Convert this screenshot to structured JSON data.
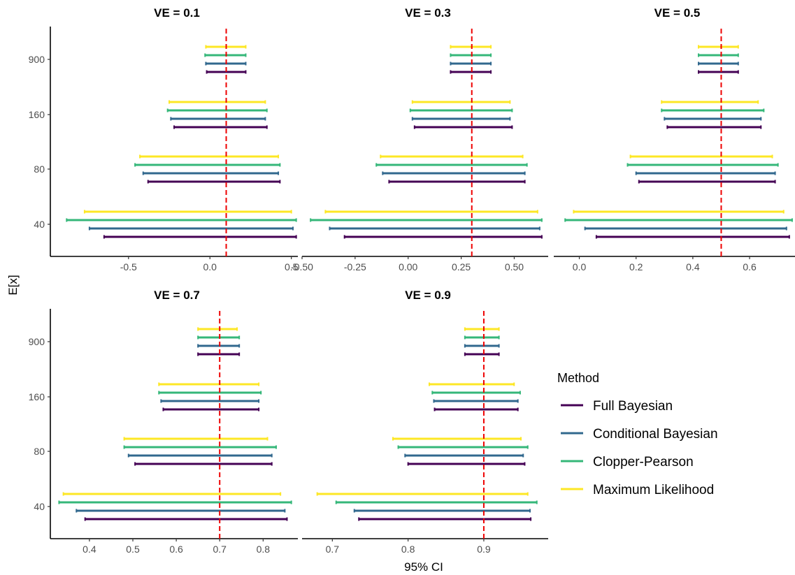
{
  "y_axis_label": "E[x]",
  "x_axis_label": "95% CI",
  "legend": {
    "title": "Method",
    "items": [
      {
        "label": "Full Bayesian",
        "color": "#440154"
      },
      {
        "label": "Conditional Bayesian",
        "color": "#31688e"
      },
      {
        "label": "Clopper-Pearson",
        "color": "#35b779"
      },
      {
        "label": "Maximum Likelihood",
        "color": "#fde725"
      }
    ]
  },
  "colors": {
    "reference_line": "#ee0000",
    "axis": "#000000",
    "tick_text": "#4d4d4d"
  },
  "chart_data": {
    "type": "errorbar-facets",
    "y_categories": [
      "40",
      "80",
      "160",
      "900"
    ],
    "series_order": [
      "Full Bayesian",
      "Conditional Bayesian",
      "Clopper-Pearson",
      "Maximum Likelihood"
    ],
    "panels": [
      {
        "title": "VE = 0.1",
        "ve": 0.1,
        "xlim": [
          -0.98,
          0.54
        ],
        "xticks": [
          {
            "v": -0.5,
            "l": "-0.5"
          },
          {
            "v": 0,
            "l": "0.0"
          },
          {
            "v": 0.5,
            "l": "0.5"
          }
        ],
        "intervals": {
          "900": [
            [
              -0.02,
              0.22
            ],
            [
              -0.025,
              0.22
            ],
            [
              -0.03,
              0.22
            ],
            [
              -0.025,
              0.22
            ]
          ],
          "160": [
            [
              -0.22,
              0.35
            ],
            [
              -0.24,
              0.34
            ],
            [
              -0.26,
              0.35
            ],
            [
              -0.25,
              0.34
            ]
          ],
          "80": [
            [
              -0.38,
              0.43
            ],
            [
              -0.41,
              0.42
            ],
            [
              -0.46,
              0.43
            ],
            [
              -0.43,
              0.42
            ]
          ],
          "40": [
            [
              -0.65,
              0.53
            ],
            [
              -0.74,
              0.51
            ],
            [
              -0.88,
              0.53
            ],
            [
              -0.77,
              0.5
            ]
          ]
        }
      },
      {
        "title": "VE = 0.3",
        "ve": 0.3,
        "xlim": [
          -0.5,
          0.66
        ],
        "xticks": [
          {
            "v": -0.5,
            "l": "-0.50"
          },
          {
            "v": -0.25,
            "l": "-0.25"
          },
          {
            "v": 0,
            "l": "0.00"
          },
          {
            "v": 0.25,
            "l": "0.25"
          },
          {
            "v": 0.5,
            "l": "0.50"
          }
        ],
        "intervals": {
          "900": [
            [
              0.2,
              0.39
            ],
            [
              0.2,
              0.39
            ],
            [
              0.2,
              0.39
            ],
            [
              0.2,
              0.39
            ]
          ],
          "160": [
            [
              0.03,
              0.49
            ],
            [
              0.02,
              0.48
            ],
            [
              0.01,
              0.49
            ],
            [
              0.02,
              0.48
            ]
          ],
          "80": [
            [
              -0.09,
              0.55
            ],
            [
              -0.12,
              0.55
            ],
            [
              -0.15,
              0.56
            ],
            [
              -0.13,
              0.54
            ]
          ],
          "40": [
            [
              -0.3,
              0.63
            ],
            [
              -0.37,
              0.62
            ],
            [
              -0.46,
              0.63
            ],
            [
              -0.39,
              0.61
            ]
          ]
        }
      },
      {
        "title": "VE = 0.5",
        "ve": 0.5,
        "xlim": [
          -0.09,
          0.76
        ],
        "xticks": [
          {
            "v": 0,
            "l": "0.0"
          },
          {
            "v": 0.2,
            "l": "0.2"
          },
          {
            "v": 0.4,
            "l": "0.4"
          },
          {
            "v": 0.6,
            "l": "0.6"
          }
        ],
        "intervals": {
          "900": [
            [
              0.42,
              0.56
            ],
            [
              0.42,
              0.56
            ],
            [
              0.42,
              0.56
            ],
            [
              0.42,
              0.56
            ]
          ],
          "160": [
            [
              0.31,
              0.64
            ],
            [
              0.3,
              0.64
            ],
            [
              0.29,
              0.65
            ],
            [
              0.29,
              0.63
            ]
          ],
          "80": [
            [
              0.21,
              0.69
            ],
            [
              0.2,
              0.69
            ],
            [
              0.17,
              0.7
            ],
            [
              0.18,
              0.68
            ]
          ],
          "40": [
            [
              0.06,
              0.74
            ],
            [
              0.02,
              0.73
            ],
            [
              -0.05,
              0.75
            ],
            [
              -0.02,
              0.72
            ]
          ]
        }
      },
      {
        "title": "VE = 0.7",
        "ve": 0.7,
        "xlim": [
          0.31,
          0.88
        ],
        "xticks": [
          {
            "v": 0.4,
            "l": "0.4"
          },
          {
            "v": 0.5,
            "l": "0.5"
          },
          {
            "v": 0.6,
            "l": "0.6"
          },
          {
            "v": 0.7,
            "l": "0.7"
          },
          {
            "v": 0.8,
            "l": "0.8"
          }
        ],
        "intervals": {
          "900": [
            [
              0.65,
              0.745
            ],
            [
              0.65,
              0.745
            ],
            [
              0.65,
              0.745
            ],
            [
              0.65,
              0.74
            ]
          ],
          "160": [
            [
              0.57,
              0.79
            ],
            [
              0.565,
              0.79
            ],
            [
              0.56,
              0.795
            ],
            [
              0.56,
              0.79
            ]
          ],
          "80": [
            [
              0.505,
              0.82
            ],
            [
              0.49,
              0.82
            ],
            [
              0.48,
              0.83
            ],
            [
              0.48,
              0.81
            ]
          ],
          "40": [
            [
              0.39,
              0.855
            ],
            [
              0.37,
              0.85
            ],
            [
              0.33,
              0.865
            ],
            [
              0.34,
              0.84
            ]
          ]
        }
      },
      {
        "title": "VE = 0.9",
        "ve": 0.9,
        "xlim": [
          0.66,
          0.985
        ],
        "xticks": [
          {
            "v": 0.7,
            "l": "0.7"
          },
          {
            "v": 0.8,
            "l": "0.8"
          },
          {
            "v": 0.9,
            "l": "0.9"
          }
        ],
        "intervals": {
          "900": [
            [
              0.875,
              0.92
            ],
            [
              0.875,
              0.92
            ],
            [
              0.875,
              0.92
            ],
            [
              0.875,
              0.92
            ]
          ],
          "160": [
            [
              0.835,
              0.945
            ],
            [
              0.834,
              0.945
            ],
            [
              0.832,
              0.948
            ],
            [
              0.828,
              0.94
            ]
          ],
          "80": [
            [
              0.8,
              0.954
            ],
            [
              0.796,
              0.952
            ],
            [
              0.787,
              0.958
            ],
            [
              0.78,
              0.949
            ]
          ],
          "40": [
            [
              0.735,
              0.962
            ],
            [
              0.729,
              0.961
            ],
            [
              0.705,
              0.97
            ],
            [
              0.68,
              0.958
            ]
          ]
        }
      }
    ]
  }
}
